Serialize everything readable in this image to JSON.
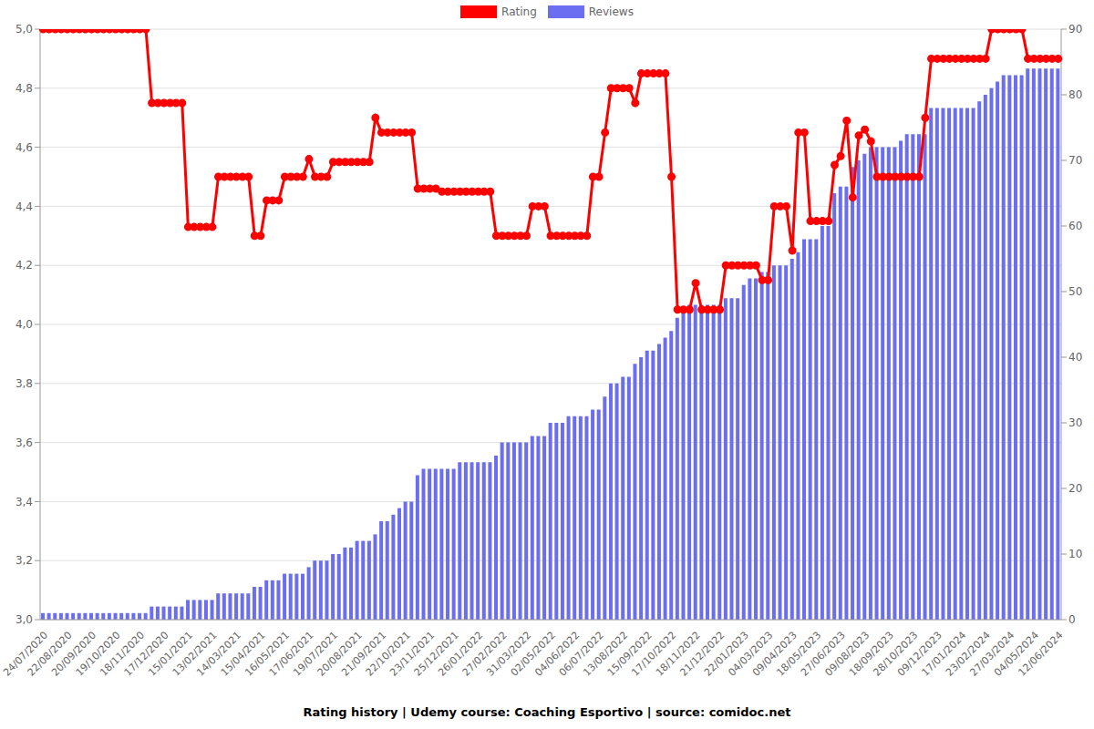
{
  "chart_data": {
    "type": "line",
    "title": "Rating history | Udemy course: Coaching Esportivo | source: comidoc.net",
    "legend": "top",
    "grid": true,
    "categories": [
      "24/07/2020",
      null,
      null,
      null,
      "22/08/2020",
      null,
      null,
      null,
      "20/09/2020",
      null,
      null,
      null,
      "19/10/2020",
      null,
      null,
      null,
      "18/11/2020",
      null,
      null,
      null,
      "17/12/2020",
      null,
      null,
      null,
      "15/01/2021",
      null,
      null,
      null,
      "13/02/2021",
      null,
      null,
      null,
      "14/03/2021",
      null,
      null,
      null,
      "15/04/2021",
      null,
      null,
      null,
      "16/05/2021",
      null,
      null,
      null,
      "17/06/2021",
      null,
      null,
      null,
      "19/07/2021",
      null,
      null,
      null,
      "20/08/2021",
      null,
      null,
      null,
      "21/09/2021",
      null,
      null,
      null,
      "22/10/2021",
      null,
      null,
      null,
      "23/11/2021",
      null,
      null,
      null,
      "25/12/2021",
      null,
      null,
      null,
      "26/01/2022",
      null,
      null,
      null,
      "27/02/2022",
      null,
      null,
      null,
      "31/03/2022",
      null,
      null,
      null,
      "02/05/2022",
      null,
      null,
      null,
      "04/06/2022",
      null,
      null,
      null,
      "06/07/2022",
      null,
      null,
      null,
      "13/08/2022",
      null,
      null,
      null,
      "15/09/2022",
      null,
      null,
      null,
      "17/10/2022",
      null,
      null,
      null,
      "18/11/2022",
      null,
      null,
      null,
      "21/12/2022",
      null,
      null,
      null,
      "22/01/2023",
      null,
      null,
      null,
      "04/03/2023",
      null,
      null,
      null,
      "09/04/2023",
      null,
      null,
      null,
      "18/05/2023",
      null,
      null,
      null,
      "27/06/2023",
      null,
      null,
      null,
      "09/08/2023",
      null,
      null,
      null,
      "18/09/2023",
      null,
      null,
      null,
      "28/10/2023",
      null,
      null,
      null,
      "09/12/2023",
      null,
      null,
      null,
      "17/01/2024",
      null,
      null,
      null,
      "23/02/2024",
      null,
      null,
      null,
      "27/03/2024",
      null,
      null,
      null,
      "04/05/2024",
      null,
      null,
      null,
      "12/06/2024"
    ],
    "series": [
      {
        "name": "Rating",
        "type": "line",
        "color": "#ff0000",
        "marker": "circle",
        "values": [
          5.0,
          5.0,
          5.0,
          5.0,
          5.0,
          5.0,
          5.0,
          5.0,
          5.0,
          5.0,
          5.0,
          5.0,
          5.0,
          5.0,
          5.0,
          5.0,
          5.0,
          5.0,
          4.75,
          4.75,
          4.75,
          4.75,
          4.75,
          4.75,
          4.33,
          4.33,
          4.33,
          4.33,
          4.33,
          4.5,
          4.5,
          4.5,
          4.5,
          4.5,
          4.5,
          4.3,
          4.3,
          4.42,
          4.42,
          4.42,
          4.5,
          4.5,
          4.5,
          4.5,
          4.56,
          4.5,
          4.5,
          4.5,
          4.55,
          4.55,
          4.55,
          4.55,
          4.55,
          4.55,
          4.55,
          4.7,
          4.65,
          4.65,
          4.65,
          4.65,
          4.65,
          4.65,
          4.46,
          4.46,
          4.46,
          4.46,
          4.45,
          4.45,
          4.45,
          4.45,
          4.45,
          4.45,
          4.45,
          4.45,
          4.45,
          4.3,
          4.3,
          4.3,
          4.3,
          4.3,
          4.3,
          4.4,
          4.4,
          4.4,
          4.3,
          4.3,
          4.3,
          4.3,
          4.3,
          4.3,
          4.3,
          4.5,
          4.5,
          4.65,
          4.8,
          4.8,
          4.8,
          4.8,
          4.75,
          4.85,
          4.85,
          4.85,
          4.85,
          4.85,
          4.5,
          4.05,
          4.05,
          4.05,
          4.14,
          4.05,
          4.05,
          4.05,
          4.05,
          4.2,
          4.2,
          4.2,
          4.2,
          4.2,
          4.2,
          4.15,
          4.15,
          4.4,
          4.4,
          4.4,
          4.25,
          4.65,
          4.65,
          4.35,
          4.35,
          4.35,
          4.35,
          4.54,
          4.57,
          4.69,
          4.43,
          4.64,
          4.66,
          4.62,
          4.5,
          4.5,
          4.5,
          4.5,
          4.5,
          4.5,
          4.5,
          4.5,
          4.7,
          4.9,
          4.9,
          4.9,
          4.9,
          4.9,
          4.9,
          4.9,
          4.9,
          4.9,
          4.9,
          5.0,
          5.0,
          5.0,
          5.0,
          5.0,
          5.0,
          4.9,
          4.9,
          4.9,
          4.9,
          4.9,
          4.9
        ]
      },
      {
        "name": "Reviews",
        "type": "bar",
        "axis": "y2",
        "color": "#6b6ef0",
        "values": [
          1,
          1,
          1,
          1,
          1,
          1,
          1,
          1,
          1,
          1,
          1,
          1,
          1,
          1,
          1,
          1,
          1,
          1,
          2,
          2,
          2,
          2,
          2,
          2,
          3,
          3,
          3,
          3,
          3,
          4,
          4,
          4,
          4,
          4,
          4,
          5,
          5,
          6,
          6,
          6,
          7,
          7,
          7,
          7,
          8,
          9,
          9,
          9,
          10,
          10,
          11,
          11,
          12,
          12,
          12,
          13,
          15,
          15,
          16,
          17,
          18,
          18,
          22,
          23,
          23,
          23,
          23,
          23,
          23,
          24,
          24,
          24,
          24,
          24,
          24,
          25,
          27,
          27,
          27,
          27,
          27,
          28,
          28,
          28,
          30,
          30,
          30,
          31,
          31,
          31,
          31,
          32,
          32,
          34,
          36,
          36,
          37,
          37,
          39,
          40,
          41,
          41,
          42,
          43,
          44,
          46,
          47,
          48,
          48,
          48,
          48,
          48,
          48,
          49,
          49,
          49,
          51,
          52,
          52,
          53,
          53,
          54,
          54,
          54,
          55,
          56,
          58,
          58,
          58,
          60,
          60,
          65,
          66,
          66,
          69,
          70,
          71,
          72,
          72,
          72,
          72,
          72,
          73,
          74,
          74,
          74,
          74,
          78,
          78,
          78,
          78,
          78,
          78,
          78,
          78,
          79,
          80,
          81,
          82,
          83,
          83,
          83,
          83,
          84,
          84,
          84,
          84,
          84,
          84
        ]
      }
    ],
    "ylim": [
      3.0,
      5.0
    ],
    "yticks": [
      {
        "value": 3.0,
        "label": "3,0"
      },
      {
        "value": 3.2,
        "label": "3,2"
      },
      {
        "value": 3.4,
        "label": "3,4"
      },
      {
        "value": 3.6,
        "label": "3,6"
      },
      {
        "value": 3.8,
        "label": "3,8"
      },
      {
        "value": 4.0,
        "label": "4,0"
      },
      {
        "value": 4.2,
        "label": "4,2"
      },
      {
        "value": 4.4,
        "label": "4,4"
      },
      {
        "value": 4.6,
        "label": "4,6"
      },
      {
        "value": 4.8,
        "label": "4,8"
      },
      {
        "value": 5.0,
        "label": "5,0"
      }
    ],
    "y2lim": [
      0,
      90
    ],
    "y2ticks": [
      0,
      10,
      20,
      30,
      40,
      50,
      60,
      70,
      80,
      90
    ]
  }
}
